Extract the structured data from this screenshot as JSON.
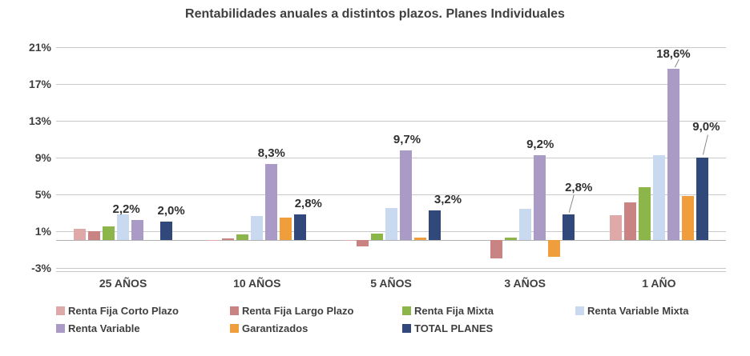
{
  "chart_data": {
    "type": "bar",
    "title": "Rentabilidades anuales a distintos plazos. Planes Individuales",
    "categories": [
      "25 AÑOS",
      "10 AÑOS",
      "5 AÑOS",
      "3 AÑOS",
      "1 AÑO"
    ],
    "series": [
      {
        "name": "Renta Fija Corto Plazo",
        "color": "#dfa9a9",
        "values": [
          1.2,
          -0.1,
          -0.1,
          0,
          2.7
        ]
      },
      {
        "name": "Renta Fija Largo Plazo",
        "color": "#c98383",
        "values": [
          1.0,
          0.2,
          -0.7,
          -2.0,
          4.1
        ]
      },
      {
        "name": "Renta Fija Mixta",
        "color": "#8cb54a",
        "values": [
          1.5,
          0.6,
          0.7,
          0.3,
          5.7
        ]
      },
      {
        "name": "Renta Variable Mixta",
        "color": "#c9daf0",
        "values": [
          2.8,
          2.6,
          3.5,
          3.4,
          9.2
        ]
      },
      {
        "name": "Renta Variable",
        "color": "#a99bc6",
        "values": [
          2.2,
          8.3,
          9.7,
          9.2,
          18.6
        ]
      },
      {
        "name": "Garantizados",
        "color": "#f09d3c",
        "values": [
          null,
          2.4,
          0.3,
          -1.8,
          4.8
        ]
      },
      {
        "name": "TOTAL PLANES",
        "color": "#31497a",
        "values": [
          2.0,
          2.8,
          3.2,
          2.8,
          9.0
        ]
      }
    ],
    "data_labels": [
      {
        "category": 0,
        "series": 4,
        "text": "2,2%"
      },
      {
        "category": 0,
        "series": 6,
        "text": "2,0%"
      },
      {
        "category": 1,
        "series": 4,
        "text": "8,3%"
      },
      {
        "category": 1,
        "series": 6,
        "text": "2,8%"
      },
      {
        "category": 2,
        "series": 4,
        "text": "9,7%"
      },
      {
        "category": 2,
        "series": 6,
        "text": "3,2%"
      },
      {
        "category": 3,
        "series": 4,
        "text": "9,2%"
      },
      {
        "category": 3,
        "series": 6,
        "text": "2,8%"
      },
      {
        "category": 4,
        "series": 4,
        "text": "18,6%"
      },
      {
        "category": 4,
        "series": 6,
        "text": "9,0%"
      }
    ],
    "y_ticks": [
      {
        "label": "21%",
        "value": 21
      },
      {
        "label": "17%",
        "value": 17
      },
      {
        "label": "13%",
        "value": 13
      },
      {
        "label": "9%",
        "value": 9
      },
      {
        "label": "5%",
        "value": 5
      },
      {
        "label": "1%",
        "value": 1
      },
      {
        "label": "-3%",
        "value": -3
      }
    ],
    "ylim": [
      -3,
      21
    ],
    "grid": true,
    "legend_position": "bottom",
    "colors": {
      "grid": "#c9c9c9",
      "axis": "#b3b3b3",
      "text": "#3f3f3f",
      "leader_line": "#8a8a8a"
    }
  }
}
